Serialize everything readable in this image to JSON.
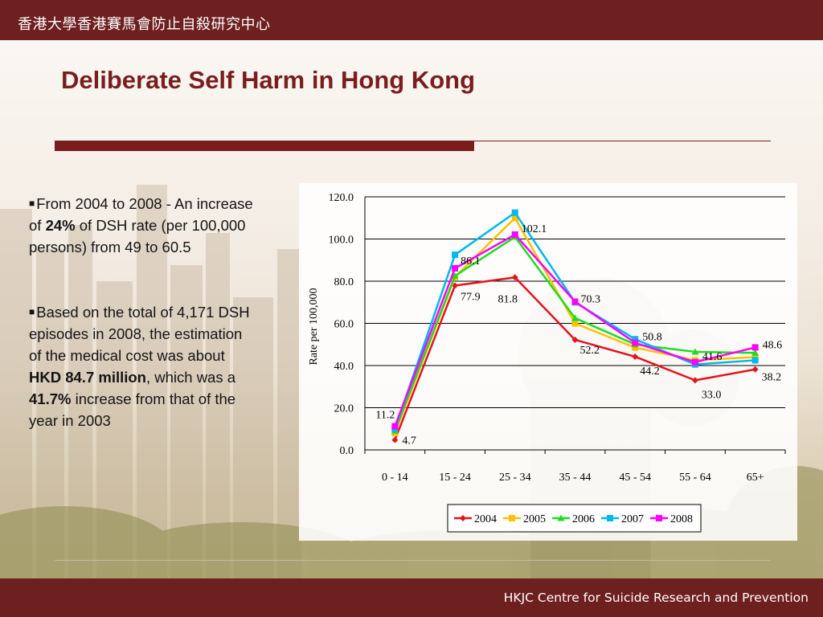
{
  "header": {
    "institution": "香港大學香港賽馬會防止自殺研究中心"
  },
  "slide": {
    "title": "Deliberate Self Harm in Hong Kong"
  },
  "bullets": [
    {
      "segments": [
        {
          "text": "From 2004 to 2008 - An increase of ",
          "bold": false
        },
        {
          "text": "24%",
          "bold": true
        },
        {
          "text": " of DSH rate (per 100,000 persons) from 49 to 60.5",
          "bold": false
        }
      ]
    },
    {
      "segments": [
        {
          "text": "Based on the total of 4,171 DSH episodes in 2008, the estimation of the medical cost was  about ",
          "bold": false
        },
        {
          "text": "HKD 84.7 million",
          "bold": true
        },
        {
          "text": ", which was a ",
          "bold": false
        },
        {
          "text": "41.7%",
          "bold": true
        },
        {
          "text": " increase from that of the year in 2003",
          "bold": false
        }
      ]
    }
  ],
  "chart_data": {
    "type": "line",
    "ylabel": "Rate per 100,000",
    "ylim": [
      0,
      120
    ],
    "yticks": [
      "0.0",
      "20.0",
      "40.0",
      "60.0",
      "80.0",
      "100.0",
      "120.0"
    ],
    "categories": [
      "0 - 14",
      "15 - 24",
      "25 - 34",
      "35 - 44",
      "45 - 54",
      "55 - 64",
      "65+"
    ],
    "grid": true,
    "legend": "bottom",
    "series": [
      {
        "name": "2004",
        "color": "#e3141c",
        "marker": "diamond",
        "values": [
          4.7,
          77.9,
          81.8,
          52.2,
          44.2,
          33.0,
          38.2
        ]
      },
      {
        "name": "2005",
        "color": "#ffc000",
        "marker": "square",
        "values": [
          8.0,
          82.0,
          110.0,
          60.0,
          48.5,
          42.5,
          44.0
        ]
      },
      {
        "name": "2006",
        "color": "#1edc1e",
        "marker": "triangle",
        "values": [
          9.0,
          82.5,
          101.0,
          62.5,
          50.0,
          46.5,
          46.0
        ]
      },
      {
        "name": "2007",
        "color": "#00b8f0",
        "marker": "square",
        "values": [
          10.0,
          92.5,
          112.5,
          70.0,
          52.5,
          40.5,
          42.5
        ]
      },
      {
        "name": "2008",
        "color": "#ff00ff",
        "marker": "square",
        "values": [
          11.2,
          86.1,
          102.1,
          70.3,
          50.8,
          41.6,
          48.6
        ]
      }
    ],
    "data_labels": [
      {
        "series": "2008",
        "labels": [
          "11.2",
          "86.1",
          "102.1",
          "70.3",
          "50.8",
          "41.6",
          "48.6"
        ]
      },
      {
        "series": "2004",
        "labels": [
          "4.7",
          "77.9",
          "81.8",
          "52.2",
          "44.2",
          "33.0",
          "38.2"
        ]
      }
    ]
  },
  "footer": {
    "centre_name": "HKJC Centre for Suicide Research and Prevention"
  }
}
